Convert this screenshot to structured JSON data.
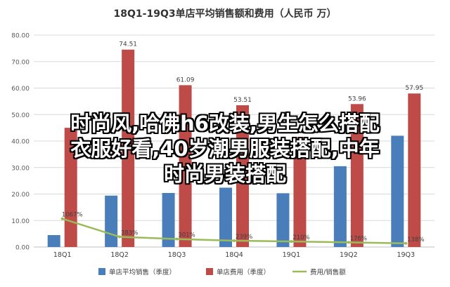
{
  "overlay": {
    "lines": [
      "时尚风,哈佛h6改装,男生怎么搭配",
      "衣服好看,40岁潮男服装搭配,中年",
      "时尚男装搭配"
    ]
  },
  "chart_data": {
    "type": "bar",
    "title": "18Q1-19Q3单店平均销售额和费用（人民币 万）",
    "categories": [
      "18Q1",
      "18Q2",
      "18Q3",
      "18Q4",
      "19Q1",
      "19Q2",
      "19Q3"
    ],
    "ylim": [
      0,
      80
    ],
    "yticks": [
      "0.00",
      "10.00",
      "20.00",
      "30.00",
      "40.00",
      "50.00",
      "60.00",
      "70.00",
      "80.00"
    ],
    "grid": true,
    "legend_position": "bottom",
    "series": [
      {
        "name": "单店平均销售（季度）",
        "type": "bar",
        "color": "#4a7ebb",
        "values": [
          4.5,
          19.4,
          20.4,
          22.4,
          20.3,
          30.5,
          42.0
        ],
        "labels": []
      },
      {
        "name": "单店费用（季度）",
        "type": "bar",
        "color": "#be4b48",
        "values": [
          45.0,
          74.51,
          61.09,
          53.51,
          41.5,
          53.96,
          57.95
        ],
        "labels": [
          "",
          "74.51",
          "61.09",
          "53.51",
          "",
          "53.96",
          "57.95"
        ]
      },
      {
        "name": "费用/销售额",
        "type": "line",
        "color": "#9bbb59",
        "values": [
          10.67,
          3.83,
          3.01,
          2.39,
          2.1,
          1.76,
          1.38
        ],
        "labels": [
          "1067%",
          "383%",
          "301%",
          "239%",
          "210%",
          "176%",
          "138%"
        ]
      }
    ]
  }
}
